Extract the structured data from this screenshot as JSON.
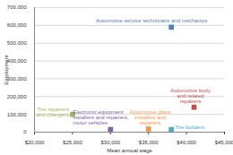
{
  "chart_data": {
    "type": "scatter",
    "x_label": "Mean annual wage",
    "y_label": "Employment",
    "marker": "square",
    "grid": true,
    "xlim": [
      20000,
      45000
    ],
    "xticks": [
      {
        "value": 20000,
        "label": "$20,000"
      },
      {
        "value": 25000,
        "label": "$25,000"
      },
      {
        "value": 30000,
        "label": "$30,000"
      },
      {
        "value": 35000,
        "label": "$35,000"
      },
      {
        "value": 40000,
        "label": "$40,000"
      },
      {
        "value": 45000,
        "label": "$45,000"
      }
    ],
    "ylim": [
      0,
      700000
    ],
    "yticks": [
      0,
      {
        "value": 100000,
        "label": "100,000"
      },
      {
        "value": 200000,
        "label": "200,000"
      },
      {
        "value": 300000,
        "label": "300,000"
      },
      {
        "value": 400000,
        "label": "400,000"
      },
      {
        "value": 500000,
        "label": "500,000"
      },
      {
        "value": 600000,
        "label": "600,000"
      },
      {
        "value": 700000,
        "label": "700,000"
      }
    ],
    "series": [
      {
        "name": "Automotive service technicians and mechanics",
        "color": "#4f81bd",
        "x": [
          38000
        ],
        "values": [
          590000
        ]
      },
      {
        "name": "Tire repairers and changers",
        "color": "#9bbb59",
        "x": [
          25000
        ],
        "values": [
          100000
        ]
      },
      {
        "name": "Electronic equipment installers and repairers, motor vehicles",
        "color": "#8064a2",
        "x": [
          30000
        ],
        "values": [
          15000
        ]
      },
      {
        "name": "Automotive glass installers and repairers",
        "color": "#f79646",
        "x": [
          35000
        ],
        "values": [
          18000
        ]
      },
      {
        "name": "Tire builders",
        "color": "#4bacc6",
        "x": [
          38000
        ],
        "values": [
          15000
        ]
      },
      {
        "name": "Automotive body and related repairers",
        "color": "#c0504d",
        "x": [
          41000
        ],
        "values": [
          140000
        ]
      }
    ]
  }
}
